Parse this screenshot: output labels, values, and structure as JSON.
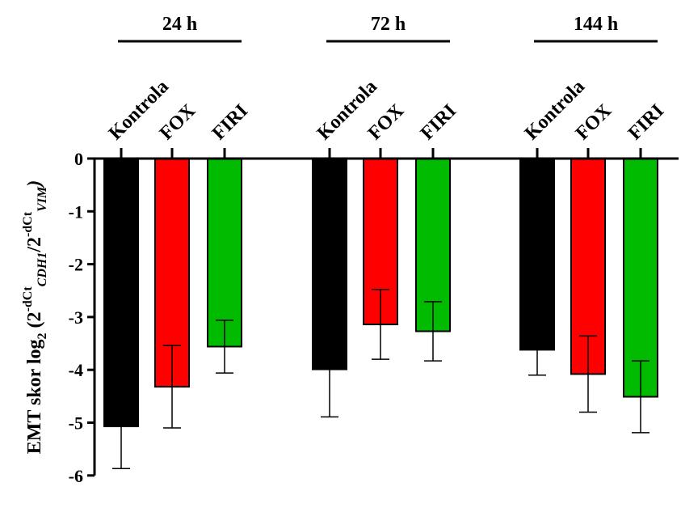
{
  "chart_data": {
    "type": "bar",
    "ylabel": {
      "prefix": "EMT skor log",
      "sub1": "2",
      "open": " (2",
      "sup1": "-dCt",
      "sub2": "CDH1",
      "slash": "/2",
      "sup2": "-dCt",
      "sub3": "VIM",
      "close": ")"
    },
    "ylim": [
      -6,
      0
    ],
    "yticks": [
      "0",
      "-1",
      "-2",
      "-3",
      "-4",
      "-5",
      "-6"
    ],
    "grid": false,
    "legend": "none",
    "groups": [
      {
        "label": "24 h",
        "bars": [
          {
            "category": "Kontrola",
            "value": -5.07,
            "error": 0.8,
            "color": "#000000"
          },
          {
            "category": "FOX",
            "value": -4.32,
            "error": 0.78,
            "color": "#ff0000"
          },
          {
            "category": "FIRI",
            "value": -3.56,
            "error": 0.5,
            "color": "#00bb00"
          }
        ]
      },
      {
        "label": "72 h",
        "bars": [
          {
            "category": "Kontrola",
            "value": -3.99,
            "error": 0.9,
            "color": "#000000"
          },
          {
            "category": "FOX",
            "value": -3.14,
            "error": 0.66,
            "color": "#ff0000"
          },
          {
            "category": "FIRI",
            "value": -3.27,
            "error": 0.56,
            "color": "#00bb00"
          }
        ]
      },
      {
        "label": "144 h",
        "bars": [
          {
            "category": "Kontrola",
            "value": -3.62,
            "error": 0.48,
            "color": "#000000"
          },
          {
            "category": "FOX",
            "value": -4.08,
            "error": 0.72,
            "color": "#ff0000"
          },
          {
            "category": "FIRI",
            "value": -4.51,
            "error": 0.68,
            "color": "#00bb00"
          }
        ]
      }
    ]
  }
}
